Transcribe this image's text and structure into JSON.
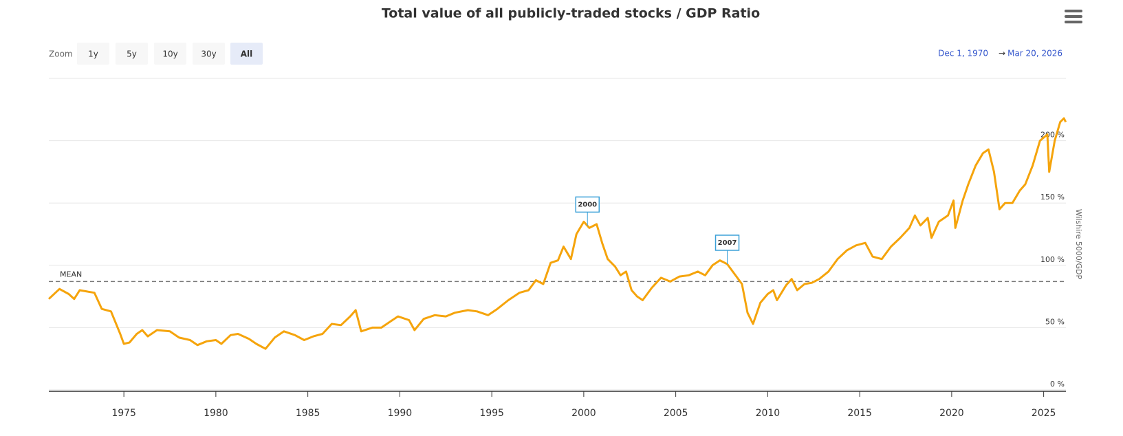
{
  "chart_data": {
    "type": "line",
    "title": "Total value of all publicly-traded stocks / GDP Ratio",
    "zoom": {
      "label": "Zoom",
      "buttons": [
        "1y",
        "5y",
        "10y",
        "30y",
        "All"
      ],
      "selected": "All"
    },
    "range": {
      "from": "Dec 1, 1970",
      "arrow": "→",
      "to": "Mar 20, 2026"
    },
    "y_axis_label": "Wilshire 5000/GDP",
    "xlim": [
      1970.92,
      2026.21
    ],
    "xticks": [
      1975,
      1980,
      1985,
      1990,
      1995,
      2000,
      2005,
      2010,
      2015,
      2020,
      2025
    ],
    "ylim": [
      0,
      250
    ],
    "yticks": [
      {
        "value": 0,
        "label": "0 %"
      },
      {
        "value": 50,
        "label": "50 %"
      },
      {
        "value": 100,
        "label": "100 %"
      },
      {
        "value": 150,
        "label": "150 %"
      },
      {
        "value": 200,
        "label": "200 %"
      }
    ],
    "grid": true,
    "mean": {
      "label": "MEAN",
      "value": 87
    },
    "flags": [
      {
        "x": 2000.2,
        "label": "2000"
      },
      {
        "x": 2007.8,
        "label": "2007"
      }
    ],
    "series": [
      {
        "name": "Wilshire 5000/GDP",
        "color": "#f5a40c",
        "x": [
          1970.92,
          1971.5,
          1972,
          1972.3,
          1972.6,
          1973,
          1973.4,
          1973.8,
          1974.3,
          1974.8,
          1975,
          1975.3,
          1975.7,
          1976,
          1976.3,
          1976.8,
          1977.5,
          1978,
          1978.6,
          1979,
          1979.5,
          1980,
          1980.3,
          1980.8,
          1981.2,
          1981.8,
          1982.2,
          1982.7,
          1983.2,
          1983.7,
          1984.3,
          1984.8,
          1985.3,
          1985.8,
          1986.3,
          1986.8,
          1987.3,
          1987.6,
          1987.9,
          1988.5,
          1989,
          1989.5,
          1989.9,
          1990.5,
          1990.8,
          1991.3,
          1991.9,
          1992.5,
          1993,
          1993.7,
          1994.2,
          1994.8,
          1995.3,
          1995.9,
          1996.5,
          1997,
          1997.4,
          1997.8,
          1998.2,
          1998.6,
          1998.9,
          1999.3,
          1999.6,
          2000,
          2000.3,
          2000.7,
          2001,
          2001.3,
          2001.7,
          2002,
          2002.3,
          2002.6,
          2002.9,
          2003.2,
          2003.7,
          2004.2,
          2004.7,
          2005.2,
          2005.7,
          2006.2,
          2006.6,
          2007,
          2007.4,
          2007.8,
          2008.2,
          2008.6,
          2008.9,
          2009.2,
          2009.6,
          2010,
          2010.3,
          2010.5,
          2011,
          2011.3,
          2011.6,
          2012,
          2012.4,
          2012.8,
          2013.3,
          2013.8,
          2014.3,
          2014.8,
          2015.3,
          2015.7,
          2016.2,
          2016.7,
          2017.2,
          2017.7,
          2018,
          2018.3,
          2018.7,
          2018.9,
          2019.3,
          2019.8,
          2020.1,
          2020.2,
          2020.6,
          2020.9,
          2021.3,
          2021.7,
          2022,
          2022.3,
          2022.6,
          2022.9,
          2023.3,
          2023.7,
          2024,
          2024.4,
          2024.8,
          2025.2,
          2025.3,
          2025.6,
          2025.9,
          2026.1,
          2026.2
        ],
        "values": [
          73,
          81,
          77,
          73,
          80,
          79,
          78,
          65,
          63,
          45,
          37,
          38,
          45,
          48,
          43,
          48,
          47,
          42,
          40,
          36,
          39,
          40,
          37,
          44,
          45,
          41,
          37,
          33,
          42,
          47,
          44,
          40,
          43,
          45,
          53,
          52,
          59,
          64,
          47,
          50,
          50,
          55,
          59,
          56,
          48,
          57,
          60,
          59,
          62,
          64,
          63,
          60,
          65,
          72,
          78,
          80,
          88,
          85,
          102,
          104,
          115,
          105,
          125,
          135,
          130,
          133,
          118,
          105,
          99,
          92,
          95,
          80,
          75,
          72,
          82,
          90,
          87,
          91,
          92,
          95,
          92,
          100,
          104,
          101,
          93,
          85,
          62,
          53,
          70,
          77,
          80,
          72,
          84,
          89,
          80,
          85,
          86,
          89,
          95,
          105,
          112,
          116,
          118,
          107,
          105,
          115,
          122,
          130,
          140,
          132,
          138,
          122,
          135,
          140,
          152,
          130,
          152,
          165,
          180,
          190,
          193,
          175,
          145,
          150,
          150,
          160,
          165,
          180,
          200,
          205,
          175,
          200,
          215,
          218,
          215
        ]
      }
    ]
  }
}
